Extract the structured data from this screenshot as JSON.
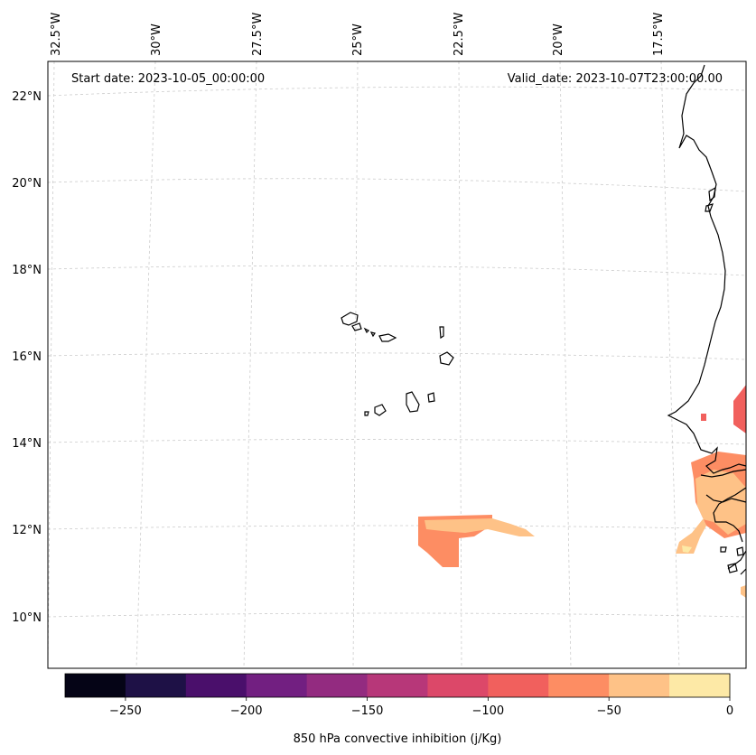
{
  "map": {
    "start_date_label": "Start date: 2023-10-05_00:00:00",
    "valid_date_label": "Valid_date: 2023-10-07T23:00:00.00",
    "lon_labels": [
      "32.5°W",
      "30°W",
      "27.5°W",
      "25°W",
      "22.5°W",
      "20°W",
      "17.5°W"
    ],
    "lat_labels": [
      "22°N",
      "20°N",
      "18°N",
      "16°N",
      "14°N",
      "12°N",
      "10°N"
    ],
    "gridlines": true
  },
  "colorbar": {
    "title": "850 hPa convective inhibition (j/Kg)",
    "tick_labels": [
      "−250",
      "−200",
      "−150",
      "−100",
      "−50",
      "0"
    ],
    "colors": [
      "#050416",
      "#1e1146",
      "#4a0f6b",
      "#721f81",
      "#932b80",
      "#b73779",
      "#dc4869",
      "#f1605d",
      "#fd8d63",
      "#fec287",
      "#fde9a6"
    ]
  }
}
